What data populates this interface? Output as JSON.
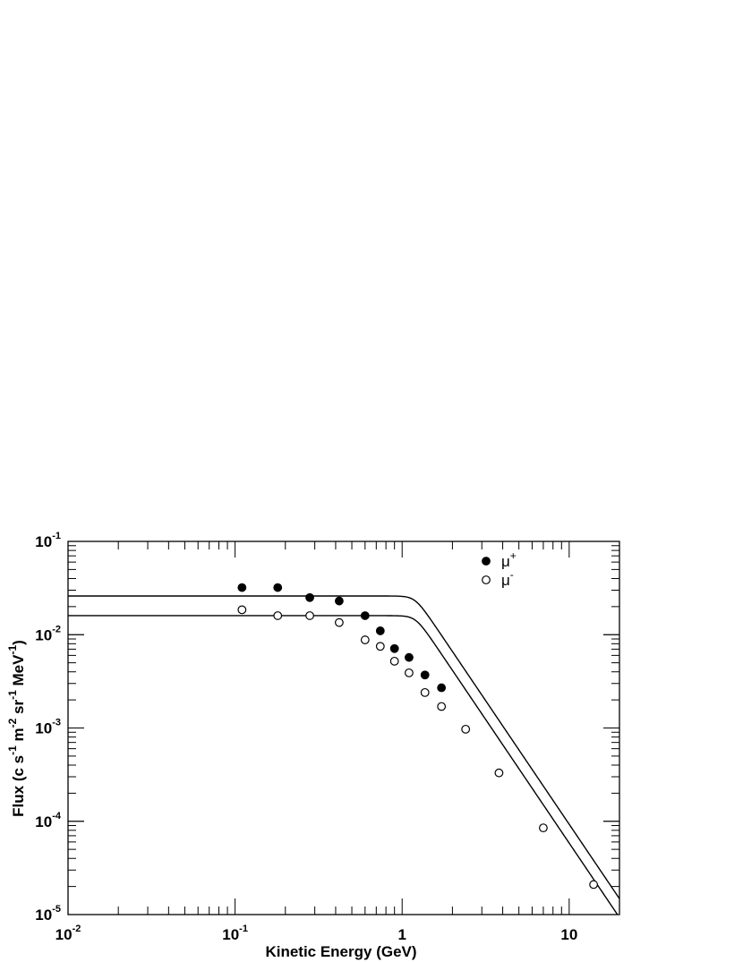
{
  "chart_data": {
    "type": "scatter",
    "xlabel": "Kinetic Energy (GeV)",
    "ylabel": {
      "parts": [
        "Flux (c s",
        "-1",
        " m",
        "-2",
        " sr",
        "-1",
        " MeV",
        "-1",
        ")"
      ]
    },
    "x_scale": "log",
    "y_scale": "log",
    "xlim": [
      0.01,
      20
    ],
    "ylim": [
      1e-05,
      0.1
    ],
    "x_ticks": [
      {
        "value": 0.01,
        "base": "10",
        "exp": "-2"
      },
      {
        "value": 0.1,
        "base": "10",
        "exp": "-1"
      },
      {
        "value": 1,
        "base": "1",
        "exp": ""
      },
      {
        "value": 10,
        "base": "10",
        "exp": ""
      }
    ],
    "y_ticks": [
      {
        "value": 0.1,
        "base": "10",
        "exp": "-1"
      },
      {
        "value": 0.01,
        "base": "10",
        "exp": "-2"
      },
      {
        "value": 0.001,
        "base": "10",
        "exp": "-3"
      },
      {
        "value": 0.0001,
        "base": "10",
        "exp": "-4"
      },
      {
        "value": 1e-05,
        "base": "10",
        "exp": "-5"
      }
    ],
    "legend_position": "top-right",
    "series": [
      {
        "name": "μ+",
        "label_base": "μ",
        "label_sup": "+",
        "marker": "filled-circle",
        "points": [
          [
            0.11,
            0.032
          ],
          [
            0.18,
            0.032
          ],
          [
            0.28,
            0.025
          ],
          [
            0.42,
            0.023
          ],
          [
            0.6,
            0.016
          ],
          [
            0.74,
            0.011
          ],
          [
            0.9,
            0.0071
          ],
          [
            1.1,
            0.0057
          ],
          [
            1.37,
            0.0037
          ],
          [
            1.72,
            0.0027
          ]
        ],
        "fit": {
          "flat": 0.026,
          "break": 0.3,
          "slope": -2.65,
          "anchor": [
            20,
            1.48e-05
          ]
        }
      },
      {
        "name": "μ-",
        "label_base": "μ",
        "label_sup": "-",
        "marker": "open-circle",
        "points": [
          [
            0.11,
            0.0185
          ],
          [
            0.18,
            0.016
          ],
          [
            0.28,
            0.016
          ],
          [
            0.42,
            0.0135
          ],
          [
            0.6,
            0.0088
          ],
          [
            0.74,
            0.0075
          ],
          [
            0.9,
            0.0052
          ],
          [
            1.1,
            0.0039
          ],
          [
            1.37,
            0.0024
          ],
          [
            1.72,
            0.0017
          ],
          [
            2.4,
            0.00097
          ],
          [
            3.8,
            0.00033
          ],
          [
            7.0,
            8.5e-05
          ],
          [
            14.0,
            2.1e-05
          ]
        ],
        "fit": {
          "flat": 0.016,
          "break": 0.3,
          "slope": -2.65,
          "anchor": [
            20,
            9.3e-06
          ]
        }
      }
    ]
  }
}
